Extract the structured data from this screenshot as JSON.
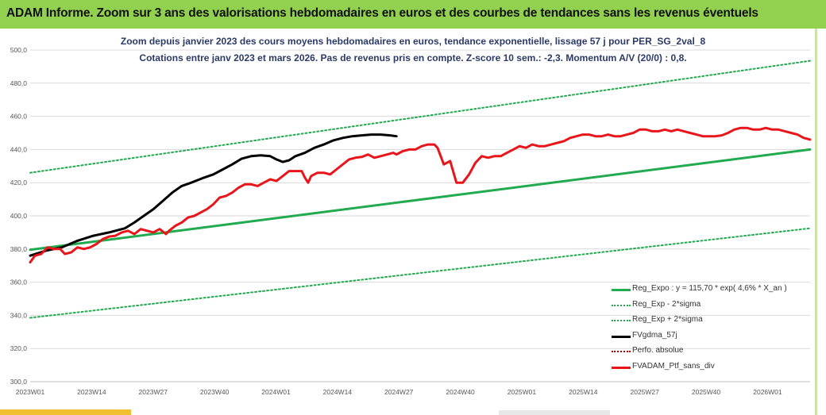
{
  "header": {
    "title": "ADAM Informe. Zoom sur 3 ans des valorisations hebdomadaires en euros et des courbes de tendances sans les revenus éventuels"
  },
  "colors": {
    "title_bg": "#92d050",
    "reg_expo": "#22aa4f",
    "sigma": "#22aa4f",
    "fvgdma": "#000000",
    "perfo": "#c00000",
    "fvadam": "#e8151b",
    "grid": "#d9d9d9",
    "subtitle": "#2b3a67"
  },
  "chart_data": {
    "type": "line",
    "title": "Zoom depuis janvier 2023 des cours moyens hebdomadaires  en euros, tendance exponentielle, lissage 57 j pour PER_SG_2val_8",
    "subtitle": "Cotations  entre janv 2023 et mars 2026. Pas de revenus pris en compte. Z-score 10 sem.: -2,3. Momentum A/V (20/0) : 0,8.",
    "xlabel": "",
    "ylabel": "",
    "ylim": [
      300,
      500
    ],
    "yticks": [
      "300,0",
      "320,0",
      "340,0",
      "360,0",
      "380,0",
      "400,0",
      "420,0",
      "440,0",
      "460,0",
      "480,0",
      "500,0"
    ],
    "yticks_values": [
      300,
      320,
      340,
      360,
      380,
      400,
      420,
      440,
      460,
      480,
      500
    ],
    "x_count": 166,
    "categories": [
      "2023W01",
      "2023W14",
      "2023W27",
      "2023W40",
      "2024W01",
      "2024W14",
      "2024W27",
      "2024W40",
      "2025W01",
      "2025W14",
      "2025W27",
      "2025W40",
      "2026W01"
    ],
    "category_index": [
      0,
      13,
      26,
      39,
      52,
      65,
      78,
      91,
      104,
      117,
      130,
      143,
      156
    ],
    "grid": true,
    "legend_position": "bottom-right",
    "series": [
      {
        "name": "Reg_Expo : y = 115,70 * exp( 4,6% *  X_an )",
        "style": "solid",
        "color": "#22aa4f",
        "points": [
          [
            0,
            379.5
          ],
          [
            165,
            440
          ]
        ]
      },
      {
        "name": "Reg_Exp - 2*sigma",
        "style": "dotted",
        "color": "#22aa4f",
        "points": [
          [
            0,
            338.5
          ],
          [
            165,
            392.5
          ]
        ]
      },
      {
        "name": "Reg_Exp + 2*sigma",
        "style": "dotted",
        "color": "#22aa4f",
        "points": [
          [
            0,
            426
          ],
          [
            165,
            493.5
          ]
        ]
      },
      {
        "name": "FVgdma_57j",
        "style": "solid",
        "color": "#000000",
        "points": [
          [
            0,
            376
          ],
          [
            10,
            379
          ],
          [
            20,
            381
          ],
          [
            30,
            385
          ],
          [
            40,
            388
          ],
          [
            50,
            390
          ],
          [
            60,
            392.5
          ],
          [
            66,
            396
          ],
          [
            72,
            400
          ],
          [
            78,
            404
          ],
          [
            84,
            409
          ],
          [
            90,
            414
          ],
          [
            96,
            418
          ],
          [
            102,
            420
          ],
          [
            110,
            423
          ],
          [
            116,
            425
          ],
          [
            122,
            428
          ],
          [
            128,
            431
          ],
          [
            134,
            434.5
          ],
          [
            140,
            436
          ],
          [
            146,
            436.5
          ],
          [
            152,
            436
          ],
          [
            156,
            434
          ],
          [
            160,
            432.5
          ],
          [
            164,
            433.5
          ],
          [
            168,
            436
          ],
          [
            174,
            438
          ],
          [
            180,
            441
          ],
          [
            186,
            443
          ],
          [
            192,
            445.5
          ],
          [
            198,
            447
          ],
          [
            204,
            448
          ],
          [
            210,
            448.5
          ],
          [
            216,
            449
          ],
          [
            222,
            449
          ],
          [
            228,
            448.5
          ],
          [
            232,
            448
          ]
        ]
      },
      {
        "name": "Perfo. absolue",
        "style": "dotted",
        "color": "#c00000",
        "points": []
      },
      {
        "name": "FVADAM_Ptf_sans_div",
        "style": "solid",
        "color": "#e8151b",
        "points": [
          [
            0,
            372
          ],
          [
            3,
            376
          ],
          [
            7,
            377
          ],
          [
            11,
            381
          ],
          [
            15,
            380
          ],
          [
            19,
            380
          ],
          [
            22,
            377
          ],
          [
            26,
            378
          ],
          [
            30,
            381
          ],
          [
            34,
            380
          ],
          [
            38,
            381
          ],
          [
            42,
            383
          ],
          [
            46,
            386
          ],
          [
            50,
            387.5
          ],
          [
            54,
            388
          ],
          [
            58,
            390
          ],
          [
            62,
            391
          ],
          [
            66,
            389
          ],
          [
            70,
            392
          ],
          [
            74,
            391
          ],
          [
            78,
            390
          ],
          [
            82,
            392
          ],
          [
            86,
            389
          ],
          [
            88,
            391
          ],
          [
            92,
            394
          ],
          [
            96,
            396
          ],
          [
            100,
            399
          ],
          [
            104,
            400
          ],
          [
            108,
            402
          ],
          [
            112,
            404
          ],
          [
            116,
            407
          ],
          [
            120,
            411
          ],
          [
            124,
            412
          ],
          [
            128,
            414
          ],
          [
            132,
            417
          ],
          [
            136,
            419
          ],
          [
            140,
            419
          ],
          [
            144,
            418
          ],
          [
            148,
            420
          ],
          [
            152,
            422
          ],
          [
            156,
            421
          ],
          [
            160,
            424
          ],
          [
            164,
            427
          ],
          [
            168,
            427
          ],
          [
            172,
            427
          ],
          [
            174,
            423
          ],
          [
            176,
            420
          ],
          [
            178,
            424
          ],
          [
            182,
            426
          ],
          [
            186,
            426
          ],
          [
            190,
            425
          ],
          [
            194,
            428
          ],
          [
            198,
            431
          ],
          [
            202,
            434
          ],
          [
            206,
            435
          ],
          [
            210,
            435.5
          ],
          [
            214,
            437
          ],
          [
            218,
            435
          ],
          [
            222,
            436
          ],
          [
            226,
            437
          ],
          [
            230,
            438
          ],
          [
            232,
            437
          ],
          [
            236,
            439
          ],
          [
            240,
            440
          ],
          [
            244,
            440
          ],
          [
            248,
            442
          ],
          [
            252,
            443
          ],
          [
            256,
            443
          ],
          [
            258,
            441
          ],
          [
            262,
            431
          ],
          [
            266,
            433
          ],
          [
            270,
            420
          ],
          [
            274,
            420
          ],
          [
            278,
            425
          ],
          [
            282,
            432
          ],
          [
            286,
            436
          ],
          [
            290,
            435
          ],
          [
            294,
            436
          ],
          [
            298,
            436
          ],
          [
            302,
            438
          ],
          [
            306,
            440
          ],
          [
            310,
            442
          ],
          [
            314,
            441
          ],
          [
            318,
            443
          ],
          [
            322,
            442
          ],
          [
            326,
            442
          ],
          [
            330,
            443
          ],
          [
            334,
            444
          ],
          [
            338,
            445
          ],
          [
            342,
            447
          ],
          [
            346,
            448
          ],
          [
            350,
            449
          ],
          [
            354,
            449
          ],
          [
            358,
            448
          ],
          [
            362,
            448
          ],
          [
            366,
            449
          ],
          [
            370,
            448
          ],
          [
            374,
            448
          ],
          [
            378,
            449
          ],
          [
            382,
            450
          ],
          [
            386,
            452
          ],
          [
            390,
            452
          ],
          [
            394,
            451
          ],
          [
            398,
            451
          ],
          [
            402,
            452
          ],
          [
            406,
            451
          ],
          [
            410,
            452
          ],
          [
            414,
            451
          ],
          [
            418,
            450
          ],
          [
            422,
            449
          ],
          [
            426,
            448
          ],
          [
            430,
            448
          ],
          [
            434,
            448
          ],
          [
            438,
            448.5
          ],
          [
            442,
            450
          ],
          [
            446,
            452
          ],
          [
            450,
            453
          ],
          [
            454,
            453
          ],
          [
            458,
            452
          ],
          [
            462,
            452
          ],
          [
            466,
            453
          ],
          [
            470,
            452
          ],
          [
            474,
            452
          ],
          [
            478,
            451
          ],
          [
            482,
            450
          ],
          [
            486,
            449
          ],
          [
            490,
            447
          ],
          [
            494,
            446
          ]
        ]
      }
    ]
  }
}
